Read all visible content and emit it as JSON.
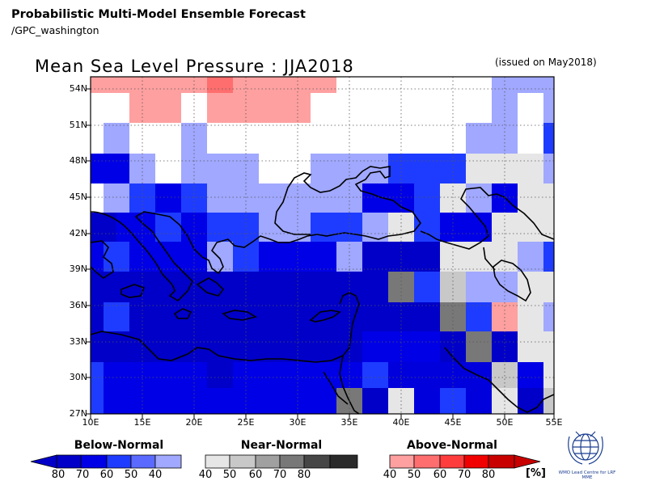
{
  "header": {
    "title": "Probabilistic Multi-Model Ensemble Forecast",
    "subtitle": "/GPC_washington"
  },
  "map": {
    "title": "Mean Sea Level Pressure : JJA2018",
    "issued": "(issued on May2018)",
    "lat_labels": [
      "54N",
      "51N",
      "48N",
      "45N",
      "42N",
      "39N",
      "36N",
      "33N",
      "30N",
      "27N"
    ],
    "lon_labels": [
      "10E",
      "15E",
      "20E",
      "25E",
      "30E",
      "35E",
      "40E",
      "45E",
      "50E",
      "55E"
    ]
  },
  "legend": {
    "below_label": "Below-Normal",
    "near_label": "Near-Normal",
    "above_label": "Above-Normal",
    "below_ticks": [
      "80",
      "70",
      "60",
      "50",
      "40"
    ],
    "near_ticks": [
      "40",
      "50",
      "60",
      "70",
      "80"
    ],
    "above_ticks": [
      "40",
      "50",
      "60",
      "70",
      "80"
    ],
    "unit": "[%]",
    "below_colors": [
      "#0000c8",
      "#0000e6",
      "#1e3cff",
      "#5a6aff",
      "#a0a8ff"
    ],
    "near_colors": [
      "#e6e6e6",
      "#c8c8c8",
      "#a0a0a0",
      "#787878",
      "#464646"
    ],
    "above_colors": [
      "#ffa0a0",
      "#ff6e6e",
      "#ff3c3c",
      "#f00000",
      "#c80000"
    ]
  },
  "logo": {
    "text": "WMO Lead Centre for LRF MME"
  }
}
